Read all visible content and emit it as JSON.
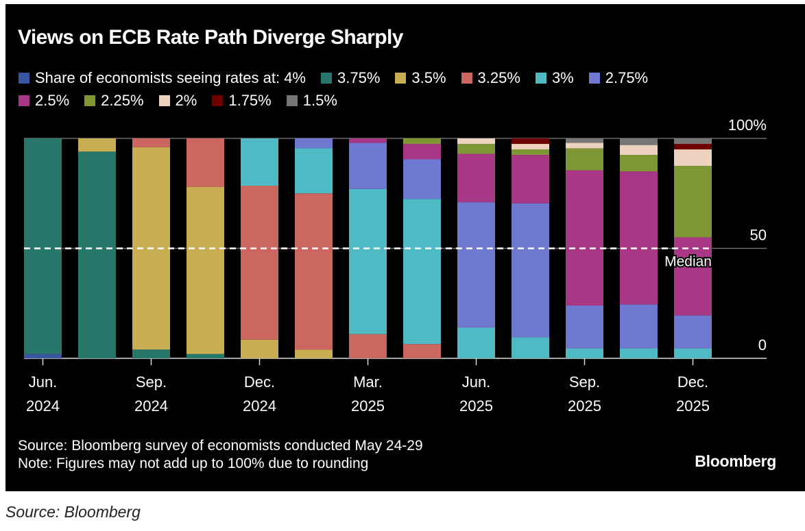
{
  "chart_data": {
    "type": "bar",
    "stacked": true,
    "title": "Views on ECB Rate Path Diverge Sharply",
    "legend_prefix": "Share of economists seeing rates at:",
    "legend_placement": "top-left",
    "xlabel": "",
    "ylabel": "",
    "ylim": [
      0,
      100
    ],
    "y_ticks": [
      {
        "value": 100,
        "label": "100%"
      },
      {
        "value": 50,
        "label": "50"
      },
      {
        "value": 0,
        "label": "0"
      }
    ],
    "grid": true,
    "median_line": {
      "value": 50,
      "label": "Median"
    },
    "categories": [
      "Jun 2024",
      "Jul 2024",
      "Sep 2024",
      "Oct 2024",
      "Dec 2024",
      "Jan 2025",
      "Mar 2025",
      "Apr 2025",
      "Jun 2025",
      "Jul 2025",
      "Sep 2025",
      "Oct 2025",
      "Dec 2025"
    ],
    "x_tick_labels": [
      {
        "index": 0,
        "line1": "Jun.",
        "line2": "2024"
      },
      {
        "index": 2,
        "line1": "Sep.",
        "line2": "2024"
      },
      {
        "index": 4,
        "line1": "Dec.",
        "line2": "2024"
      },
      {
        "index": 6,
        "line1": "Mar.",
        "line2": "2025"
      },
      {
        "index": 8,
        "line1": "Jun.",
        "line2": "2025"
      },
      {
        "index": 10,
        "line1": "Sep.",
        "line2": "2025"
      },
      {
        "index": 12,
        "line1": "Dec.",
        "line2": "2025"
      }
    ],
    "series": [
      {
        "name": "4%",
        "color": "#3a55a0",
        "values": [
          2,
          0,
          0,
          0,
          0,
          0,
          0,
          0,
          0,
          0,
          0,
          0,
          0
        ]
      },
      {
        "name": "3.75%",
        "color": "#27786a",
        "values": [
          98,
          94,
          4,
          2,
          0,
          0,
          0,
          0,
          0,
          0,
          0,
          0,
          0
        ]
      },
      {
        "name": "3.5%",
        "color": "#c9ad53",
        "values": [
          0,
          6,
          92,
          76,
          8.5,
          4,
          0,
          0,
          0,
          0,
          0,
          0,
          0
        ]
      },
      {
        "name": "3.25%",
        "color": "#cc6660",
        "values": [
          0,
          0,
          4,
          22,
          70,
          71,
          11,
          6.5,
          0,
          0,
          0,
          0,
          0
        ]
      },
      {
        "name": "3%",
        "color": "#4fb9c4",
        "values": [
          0,
          0,
          0,
          0,
          21.5,
          20.5,
          66,
          66,
          14,
          9.5,
          4.5,
          4.5,
          4.5
        ]
      },
      {
        "name": "2.75%",
        "color": "#6e78cf",
        "values": [
          0,
          0,
          0,
          0,
          0,
          4.5,
          21,
          18,
          57,
          61,
          19.5,
          20,
          15
        ]
      },
      {
        "name": "2.5%",
        "color": "#a83885",
        "values": [
          0,
          0,
          0,
          0,
          0,
          0,
          2,
          7,
          22,
          22,
          61.5,
          60.5,
          35.5
        ]
      },
      {
        "name": "2.25%",
        "color": "#7f9636",
        "values": [
          0,
          0,
          0,
          0,
          0,
          0,
          0,
          2.5,
          4.5,
          2.5,
          10,
          7.5,
          32.5
        ]
      },
      {
        "name": "2%",
        "color": "#edd2bf",
        "values": [
          0,
          0,
          0,
          0,
          0,
          0,
          0,
          0,
          2.5,
          2.5,
          2.5,
          4.5,
          7.5
        ]
      },
      {
        "name": "1.75%",
        "color": "#6e0000",
        "values": [
          0,
          0,
          0,
          0,
          0,
          0,
          0,
          0,
          0,
          2.5,
          0,
          0,
          2.5
        ]
      },
      {
        "name": "1.5%",
        "color": "#767676",
        "values": [
          0,
          0,
          0,
          0,
          0,
          0,
          0,
          0,
          0,
          0,
          2,
          3,
          2.5
        ]
      }
    ]
  },
  "legend": {
    "row1": [
      {
        "label": "Share of economists seeing rates at: 4%",
        "color": "#3a55a0"
      },
      {
        "label": "3.75%",
        "color": "#27786a"
      },
      {
        "label": "3.5%",
        "color": "#c9ad53"
      },
      {
        "label": "3.25%",
        "color": "#cc6660"
      },
      {
        "label": "3%",
        "color": "#4fb9c4"
      },
      {
        "label": "2.75%",
        "color": "#6e78cf"
      }
    ],
    "row2": [
      {
        "label": "2.5%",
        "color": "#a83885"
      },
      {
        "label": "2.25%",
        "color": "#7f9636"
      },
      {
        "label": "2%",
        "color": "#edd2bf"
      },
      {
        "label": "1.75%",
        "color": "#6e0000"
      },
      {
        "label": "1.5%",
        "color": "#767676"
      }
    ]
  },
  "footer": {
    "source": "Source: Bloomberg survey of economists conducted May 24-29",
    "note": "Note: Figures may not add up to 100% due to rounding",
    "brand": "Bloomberg"
  },
  "caption": "Source: Bloomberg",
  "colors": {
    "background": "#000000",
    "text": "#ffffff",
    "gridline": "#6b6b6b",
    "median_line": "#ffffff"
  }
}
